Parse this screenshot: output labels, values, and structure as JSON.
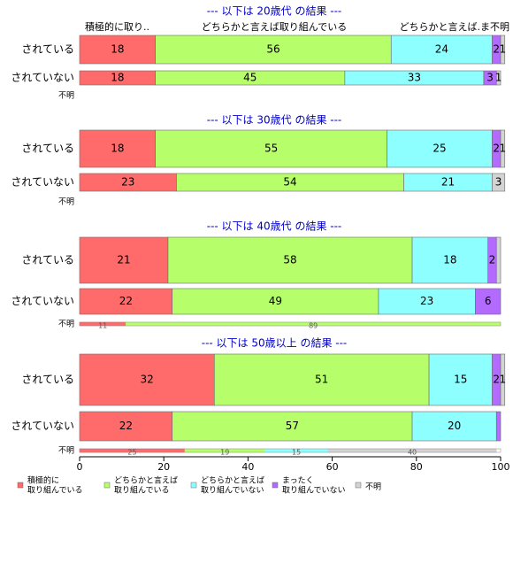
{
  "chart_data": {
    "type": "bar",
    "stacked": true,
    "orientation": "horizontal",
    "xlim": [
      0,
      100
    ],
    "xticks": [
      0,
      20,
      40,
      60,
      80,
      100
    ],
    "colors": {
      "積極的に取り組んでいる": "#ff6b6b",
      "どちらかと言えば取り組んでいる": "#b6ff6b",
      "どちらかと言えば取り組んでいない": "#8effff",
      "まったく取り組んでいない": "#b36bff",
      "不明": "#d3d3d3",
      "title": "#0000cc"
    },
    "column_headers": [
      "積極的に取り..",
      "どちらかと言えば取り組んでいる",
      "どちらかと言えば.ま不明"
    ],
    "legend": [
      {
        "label_lines": [
          "積極的に",
          "取り組んでいる"
        ],
        "key": "積極的に取り組んでいる"
      },
      {
        "label_lines": [
          "どちらかと言えば",
          "取り組んでいる"
        ],
        "key": "どちらかと言えば取り組んでいる"
      },
      {
        "label_lines": [
          "どちらかと言えば",
          "取り組んでいない"
        ],
        "key": "どちらかと言えば取り組んでいない"
      },
      {
        "label_lines": [
          "まったく",
          "取り組んでいない"
        ],
        "key": "まったく取り組んでいない"
      },
      {
        "label_lines": [
          "不明"
        ],
        "key": "不明"
      }
    ],
    "panels": [
      {
        "title": "--- 以下は 20歳代 の結果 ---",
        "rows": [
          {
            "label": "されている",
            "values": [
              18,
              56,
              24,
              2,
              1
            ],
            "labels": [
              "18",
              "56",
              "24",
              "2",
              "1"
            ]
          },
          {
            "label": "されていない",
            "values": [
              18,
              45,
              33,
              3,
              1
            ],
            "labels": [
              "18",
              "45",
              "33",
              "3",
              "1"
            ]
          },
          {
            "label": "不明",
            "values": [],
            "labels": []
          }
        ]
      },
      {
        "title": "--- 以下は 30歳代 の結果 ---",
        "rows": [
          {
            "label": "されている",
            "values": [
              18,
              55,
              25,
              2,
              1
            ],
            "labels": [
              "18",
              "55",
              "25",
              "2",
              "1"
            ]
          },
          {
            "label": "されていない",
            "values": [
              23,
              54,
              21,
              0,
              3
            ],
            "labels": [
              "23",
              "54",
              "21",
              "",
              "3"
            ]
          },
          {
            "label": "不明",
            "values": [],
            "labels": []
          }
        ]
      },
      {
        "title": "--- 以下は 40歳代 の結果 ---",
        "rows": [
          {
            "label": "されている",
            "values": [
              21,
              58,
              18,
              2,
              1
            ],
            "labels": [
              "21",
              "58",
              "18",
              "2",
              ""
            ]
          },
          {
            "label": "されていない",
            "values": [
              22,
              49,
              23,
              6,
              0
            ],
            "labels": [
              "22",
              "49",
              "23",
              "6",
              ""
            ]
          },
          {
            "label": "不明",
            "values": [
              11,
              89,
              0,
              0,
              0
            ],
            "labels": [
              "11",
              "89",
              "",
              "",
              ""
            ]
          }
        ]
      },
      {
        "title": "--- 以下は 50歳以上 の結果 ---",
        "rows": [
          {
            "label": "されている",
            "values": [
              32,
              51,
              15,
              2,
              1
            ],
            "labels": [
              "32",
              "51",
              "15",
              "2",
              "1"
            ]
          },
          {
            "label": "されていない",
            "values": [
              22,
              57,
              20,
              1,
              0
            ],
            "labels": [
              "22",
              "57",
              "20",
              "",
              ""
            ]
          },
          {
            "label": "不明",
            "values": [
              25,
              19,
              15,
              0,
              40
            ],
            "labels": [
              "25",
              "19",
              "15",
              "",
              "40"
            ]
          }
        ]
      }
    ]
  }
}
